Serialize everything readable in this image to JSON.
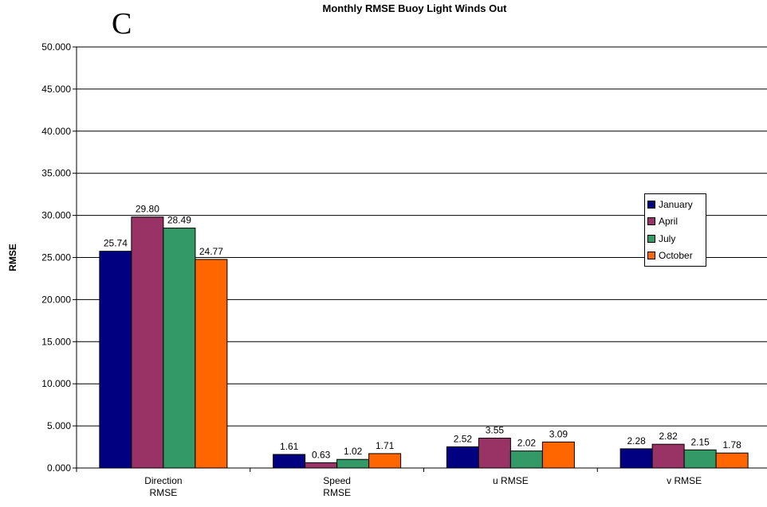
{
  "panel_letter": "C",
  "chart_data": {
    "type": "bar",
    "title": "Monthly RMSE Buoy Light Winds Out",
    "xlabel": "",
    "ylabel": "RMSE",
    "ylim": [
      0,
      50
    ],
    "ytick_labels": [
      "0.000",
      "5.000",
      "10.000",
      "15.000",
      "20.000",
      "25.000",
      "30.000",
      "35.000",
      "40.000",
      "45.000",
      "50.000"
    ],
    "categories": [
      [
        "Direction",
        "RMSE"
      ],
      [
        "Speed",
        "RMSE"
      ],
      [
        "u RMSE"
      ],
      [
        "v RMSE"
      ]
    ],
    "series": [
      {
        "name": "January",
        "color": "#000080",
        "values": [
          25.74,
          1.61,
          2.52,
          2.28
        ],
        "labels": [
          "25.74",
          "1.61",
          "2.52",
          "2.28"
        ]
      },
      {
        "name": "April",
        "color": "#993366",
        "values": [
          29.8,
          0.63,
          3.55,
          2.82
        ],
        "labels": [
          "29.80",
          "0.63",
          "3.55",
          "2.82"
        ]
      },
      {
        "name": "July",
        "color": "#339966",
        "values": [
          28.49,
          1.02,
          2.02,
          2.15
        ],
        "labels": [
          "28.49",
          "1.02",
          "2.02",
          "2.15"
        ]
      },
      {
        "name": "October",
        "color": "#FF6600",
        "values": [
          24.77,
          1.71,
          3.09,
          1.78
        ],
        "labels": [
          "24.77",
          "1.71",
          "3.09",
          "1.78"
        ]
      }
    ],
    "grid": true,
    "legend_position": "right"
  }
}
